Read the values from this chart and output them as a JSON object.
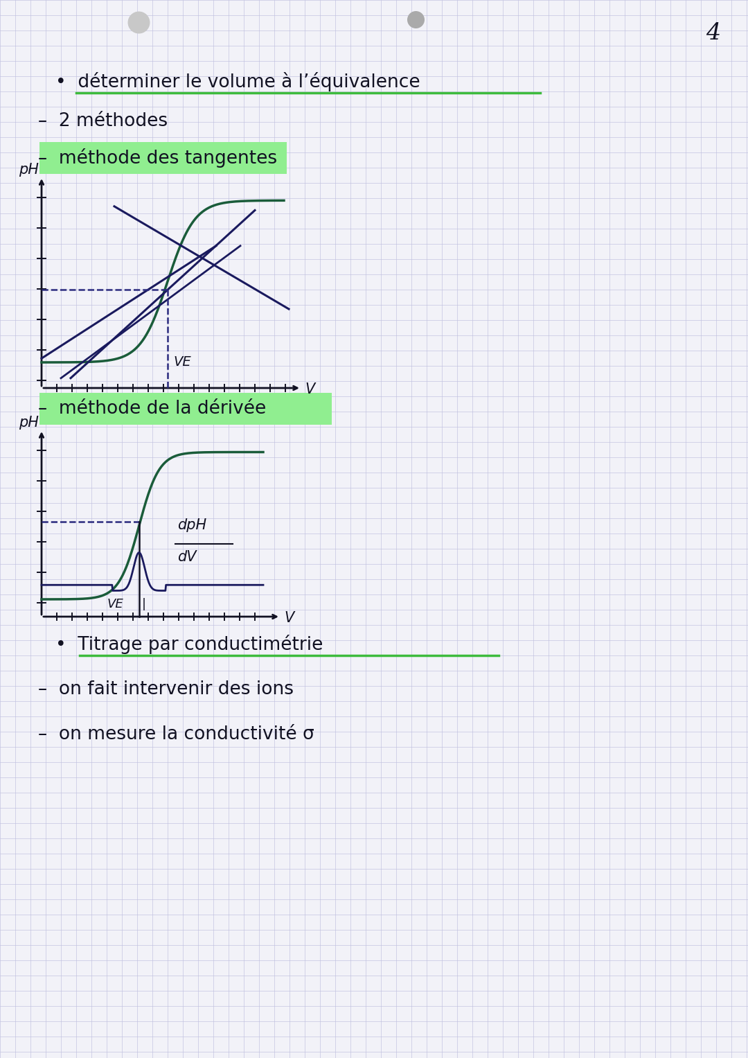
{
  "bg_color": "#f2f2f8",
  "grid_color": "#c0c0e0",
  "page_number": "4",
  "highlight_color": "#90ee90",
  "underline_color": "#3dbb3d",
  "curve_color": "#1a5c3a",
  "tangent_color": "#1a1a5e",
  "dashed_color": "#2a2a7e",
  "deriv_curve_color": "#1a1a5e",
  "axis_color": "#111122",
  "text_color": "#111122",
  "line1_text": "•  déterminer le volume à l’équivalence",
  "line2_text": "–  2 méthodes",
  "line3_text": "–  méthode des tangentes",
  "line4_text": "–  méthode de la dérivée",
  "line5_text": "•  Titrage par conductimétrie",
  "line6_text": "–  on fait intervenir des ions",
  "line7_text": "–  on mesure la conductivité σ",
  "graph1_ylabel": "pH",
  "graph1_xlabel": "V",
  "graph1_ve": "VE",
  "graph2_ylabel": "pH",
  "graph2_xlabel": "V",
  "graph2_ve": "VE",
  "graph2_deriv_top": "dpH",
  "graph2_deriv_bot": "dV"
}
